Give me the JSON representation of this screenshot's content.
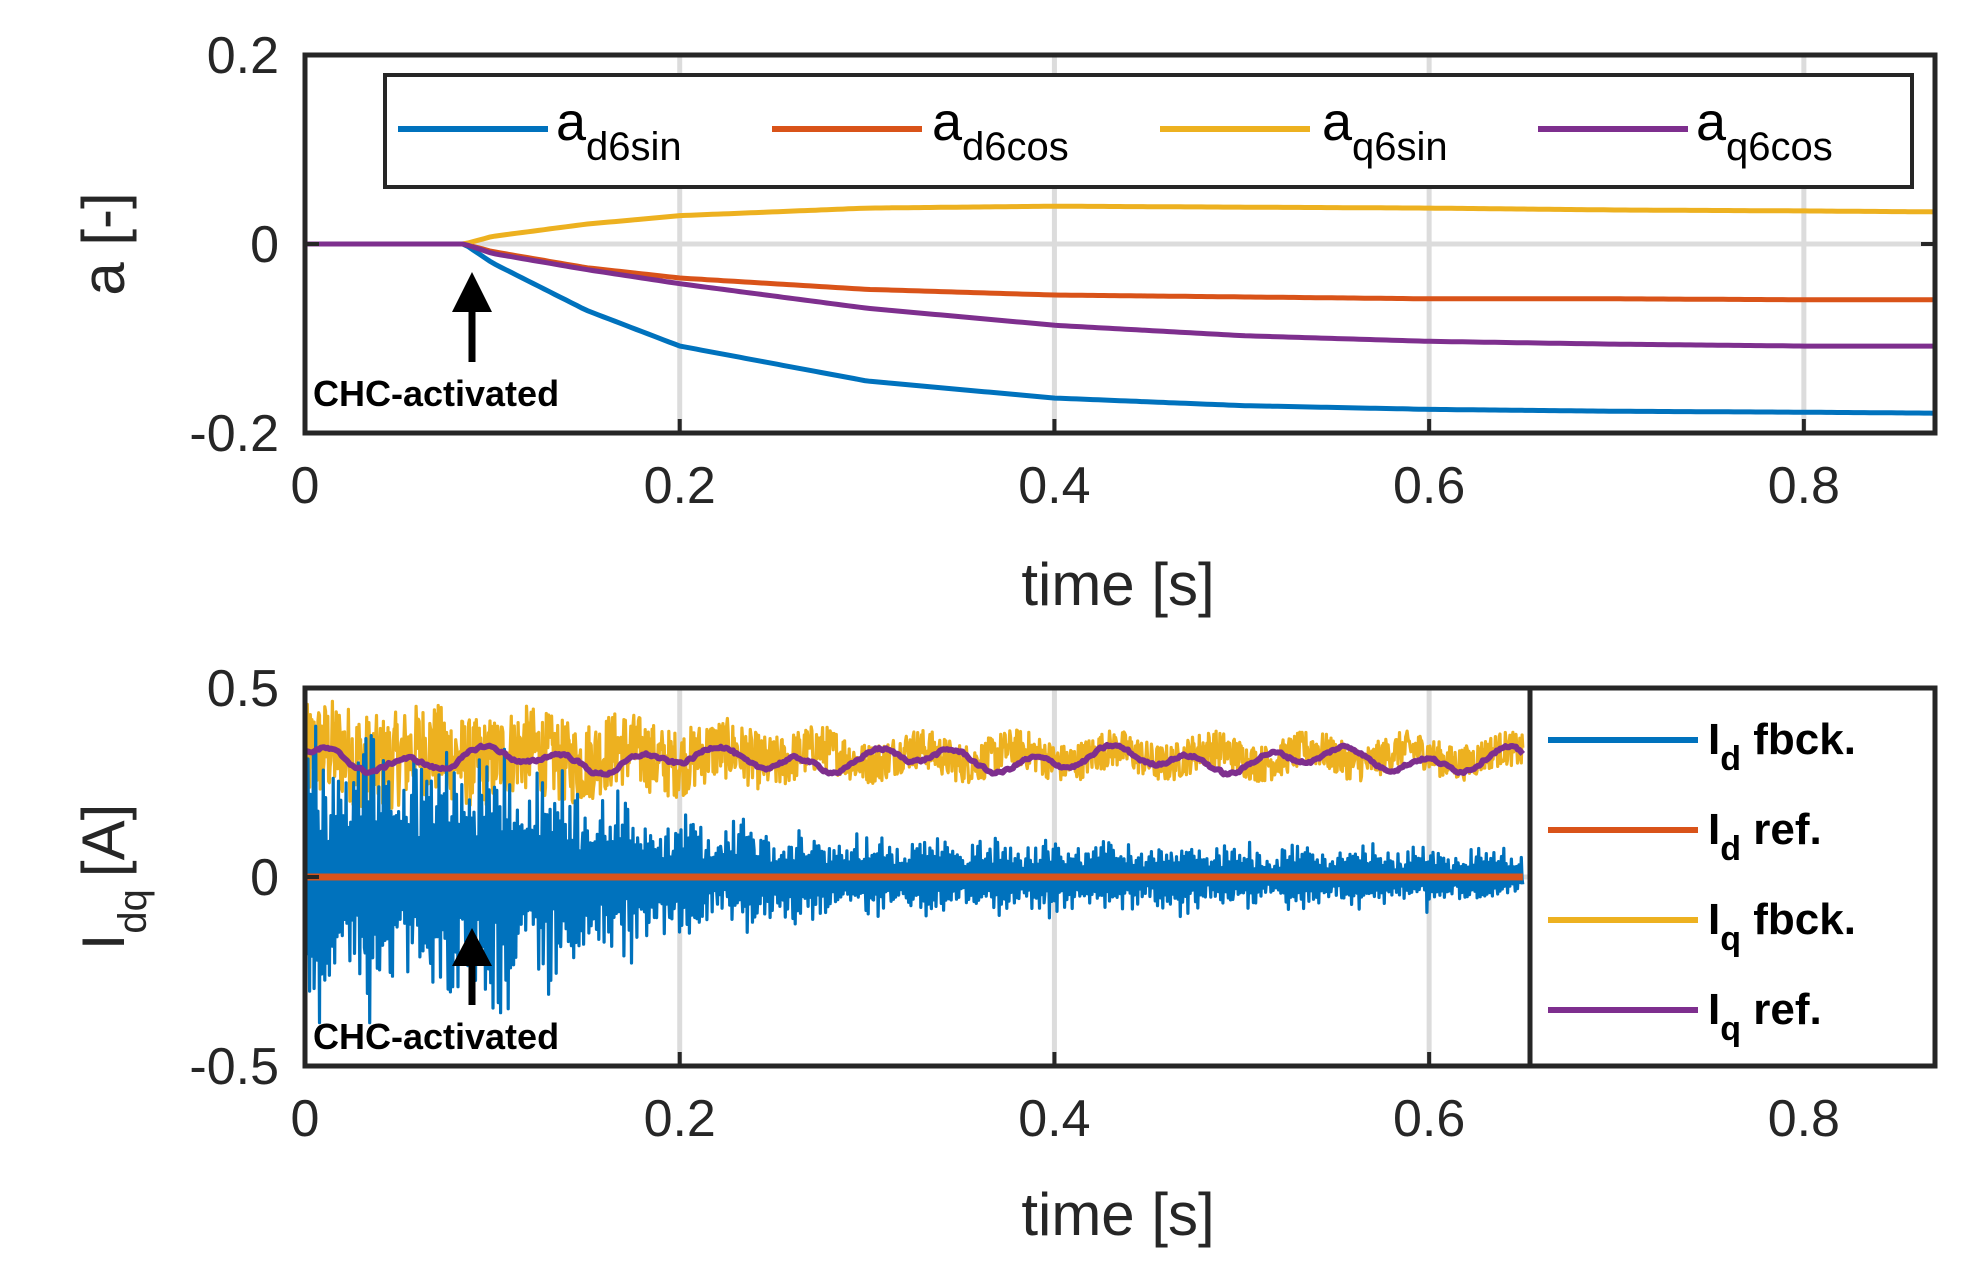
{
  "chart_data": [
    {
      "type": "line",
      "xlabel": "time [s]",
      "ylabel": "a [-]",
      "xlim": [
        0,
        0.87
      ],
      "ylim": [
        -0.2,
        0.2
      ],
      "x_ticks": [
        "0",
        "0.2",
        "0.4",
        "0.6",
        "0.8"
      ],
      "y_ticks": [
        "0.2",
        "0",
        "-0.2"
      ],
      "grid": true,
      "legend_position": "top",
      "annotation": {
        "text": "CHC-activated",
        "x": 0.09
      },
      "series": [
        {
          "name_main": "a",
          "name_sub": "d6sin",
          "color": "#0072BD",
          "x": [
            0,
            0.085,
            0.1,
            0.15,
            0.2,
            0.3,
            0.4,
            0.5,
            0.6,
            0.7,
            0.8,
            0.87
          ],
          "y": [
            0,
            0,
            -0.02,
            -0.07,
            -0.108,
            -0.145,
            -0.163,
            -0.171,
            -0.175,
            -0.177,
            -0.178,
            -0.179
          ]
        },
        {
          "name_main": "a",
          "name_sub": "d6cos",
          "color": "#D95319",
          "x": [
            0,
            0.085,
            0.1,
            0.15,
            0.2,
            0.3,
            0.4,
            0.5,
            0.6,
            0.7,
            0.8,
            0.87
          ],
          "y": [
            0,
            0,
            -0.008,
            -0.025,
            -0.036,
            -0.048,
            -0.054,
            -0.056,
            -0.058,
            -0.058,
            -0.059,
            -0.059
          ]
        },
        {
          "name_main": "a",
          "name_sub": "q6sin",
          "color": "#EDB120",
          "x": [
            0,
            0.085,
            0.1,
            0.15,
            0.2,
            0.3,
            0.4,
            0.5,
            0.6,
            0.7,
            0.8,
            0.87
          ],
          "y": [
            0,
            0,
            0.008,
            0.021,
            0.03,
            0.038,
            0.04,
            0.039,
            0.038,
            0.036,
            0.035,
            0.034
          ]
        },
        {
          "name_main": "a",
          "name_sub": "q6cos",
          "color": "#7E2F8E",
          "x": [
            0,
            0.085,
            0.1,
            0.15,
            0.2,
            0.3,
            0.4,
            0.5,
            0.6,
            0.7,
            0.8,
            0.87
          ],
          "y": [
            0,
            0,
            -0.01,
            -0.027,
            -0.042,
            -0.068,
            -0.086,
            -0.097,
            -0.103,
            -0.106,
            -0.108,
            -0.108
          ]
        }
      ]
    },
    {
      "type": "line",
      "xlabel": "time [s]",
      "ylabel_main": "I",
      "ylabel_sub": "dq",
      "ylabel_unit": "[A]",
      "xlim": [
        0,
        0.87
      ],
      "ylim": [
        -0.5,
        0.5
      ],
      "x_ticks": [
        "0",
        "0.2",
        "0.4",
        "0.6",
        "0.8"
      ],
      "y_ticks": [
        "0.5",
        "0",
        "-0.5"
      ],
      "grid": true,
      "data_end_x": 0.65,
      "legend_position": "right",
      "annotation": {
        "text": "CHC-activated",
        "x": 0.09
      },
      "series": [
        {
          "name_main": "I",
          "name_sub": "d",
          "name_rest": " fbck.",
          "color": "#0072BD",
          "mean": 0.0,
          "amplitude_profile": {
            "x": [
              0,
              0.09,
              0.15,
              0.2,
              0.3,
              0.65
            ],
            "amp": [
              0.28,
              0.28,
              0.2,
              0.13,
              0.08,
              0.06
            ]
          }
        },
        {
          "name_main": "I",
          "name_sub": "d",
          "name_rest": " ref.",
          "color": "#D95319",
          "mean": 0.0,
          "amplitude_profile": {
            "x": [
              0,
              0.65
            ],
            "amp": [
              0,
              0
            ]
          }
        },
        {
          "name_main": "I",
          "name_sub": "q",
          "name_rest": " fbck.",
          "color": "#EDB120",
          "mean": 0.32,
          "amplitude_profile": {
            "x": [
              0,
              0.15,
              0.3,
              0.65
            ],
            "amp": [
              0.15,
              0.12,
              0.06,
              0.05
            ]
          }
        },
        {
          "name_main": "I",
          "name_sub": "q",
          "name_rest": " ref.",
          "color": "#7E2F8E",
          "mean": 0.31,
          "amplitude_profile": {
            "x": [
              0,
              0.65
            ],
            "amp": [
              0.035,
              0.035
            ]
          }
        }
      ]
    }
  ]
}
